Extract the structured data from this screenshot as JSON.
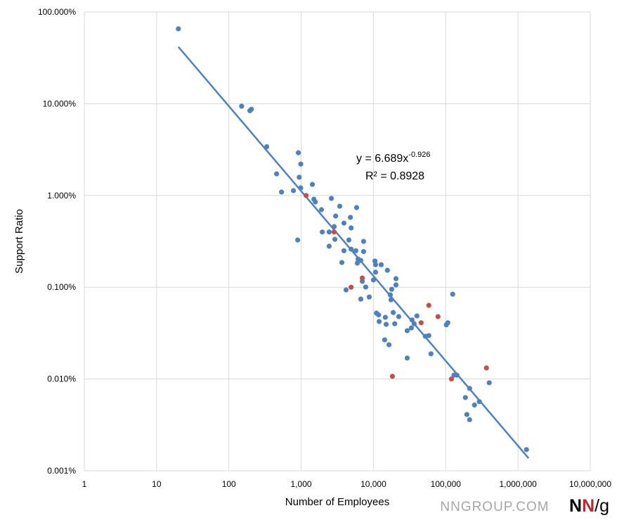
{
  "chart_data": {
    "type": "scatter",
    "x_label": "Number of Employees",
    "y_label": "Support Ratio",
    "xscale": "log",
    "yscale": "log",
    "grid": true,
    "xlim": [
      1,
      10000000
    ],
    "ylim": [
      0.001,
      100
    ],
    "xticks": [
      1,
      10,
      100,
      {
        "value": 1000,
        "label": "1,000"
      },
      {
        "value": 10000,
        "label": "10,000"
      },
      {
        "value": 100000,
        "label": "100,000"
      },
      {
        "value": 1000000,
        "label": "1,000,000"
      },
      {
        "value": 10000000,
        "label": "10,000,000"
      }
    ],
    "yticks": [
      {
        "value": 0.001,
        "label": "0.001%"
      },
      {
        "value": 0.01,
        "label": "0.010%"
      },
      {
        "value": 0.1,
        "label": "0.100%"
      },
      {
        "value": 1,
        "label": "1.000%"
      },
      {
        "value": 10,
        "label": "10.000%"
      },
      {
        "value": 100,
        "label": "100.000%"
      }
    ],
    "series": [
      {
        "color": "#4f81bd",
        "x": [
          20,
          150,
          195,
          205,
          334,
          457,
          535,
          782,
          915,
          988,
          940,
          988,
          895,
          1430,
          1500,
          1570,
          1910,
          1960,
          2440,
          2620,
          2440,
          2860,
          3000,
          2930,
          3420,
          3660,
          3910,
          3910,
          4570,
          4800,
          4910,
          4180,
          4910,
          5850,
          5710,
          6130,
          5990,
          6680,
          7310,
          7310,
          6680,
          7010,
          7820,
          8750,
          10000,
          10500,
          10700,
          10700,
          11000,
          11800,
          12000,
          12800,
          14300,
          14600,
          15000,
          15600,
          16400,
          17100,
          17500,
          17900,
          18800,
          19700,
          20500,
          20500,
          22400,
          29300,
          29300,
          33400,
          34200,
          36600,
          40000,
          52300,
          58400,
          62500,
          102000,
          107000,
          125000,
          130000,
          143000,
          187000,
          214000,
          196000,
          214000,
          250000,
          292000,
          400000,
          1310000
        ],
        "values": [
          65.5,
          9.4,
          8.4,
          8.7,
          3.4,
          1.72,
          1.09,
          1.13,
          2.92,
          2.2,
          1.58,
          1.21,
          0.327,
          1.32,
          0.91,
          0.85,
          0.7,
          0.4,
          0.4,
          0.93,
          0.28,
          0.458,
          0.597,
          0.333,
          0.764,
          0.186,
          0.5,
          0.25,
          0.327,
          0.577,
          0.443,
          0.0935,
          0.26,
          0.738,
          0.25,
          0.203,
          0.183,
          0.196,
          0.316,
          0.245,
          0.0743,
          0.116,
          0.1005,
          0.0783,
          0.12,
          0.193,
          0.176,
          0.146,
          0.0522,
          0.05,
          0.0423,
          0.176,
          0.0267,
          0.047,
          0.0394,
          0.153,
          0.0236,
          0.0826,
          0.073,
          0.095,
          0.053,
          0.04,
          0.124,
          0.106,
          0.0478,
          0.0169,
          0.0336,
          0.036,
          0.044,
          0.04,
          0.0487,
          0.0292,
          0.0297,
          0.0188,
          0.039,
          0.041,
          0.084,
          0.011,
          0.011,
          0.00628,
          0.0079,
          0.0041,
          0.0036,
          0.0052,
          0.00566,
          0.0091,
          0.0017
        ]
      },
      {
        "color": "#c0504d",
        "x": [
          1170,
          2860,
          4910,
          7010,
          18300,
          45700,
          58400,
          78200,
          120000,
          366000
        ],
        "values": [
          1.0,
          0.4,
          0.1,
          0.126,
          0.0107,
          0.041,
          0.0634,
          0.0478,
          0.01,
          0.0132
        ]
      }
    ],
    "trendline": {
      "color": "#4f81bd",
      "x": [
        20,
        1400000
      ],
      "values": [
        41.7,
        0.00137
      ]
    },
    "equation": "y = 6.689x",
    "equation_exponent": "-0.926",
    "r_squared": "R² = 0.8928"
  },
  "watermark": {
    "text": "NNGROUP.COM",
    "logo": [
      "N",
      "N",
      "/g"
    ]
  }
}
